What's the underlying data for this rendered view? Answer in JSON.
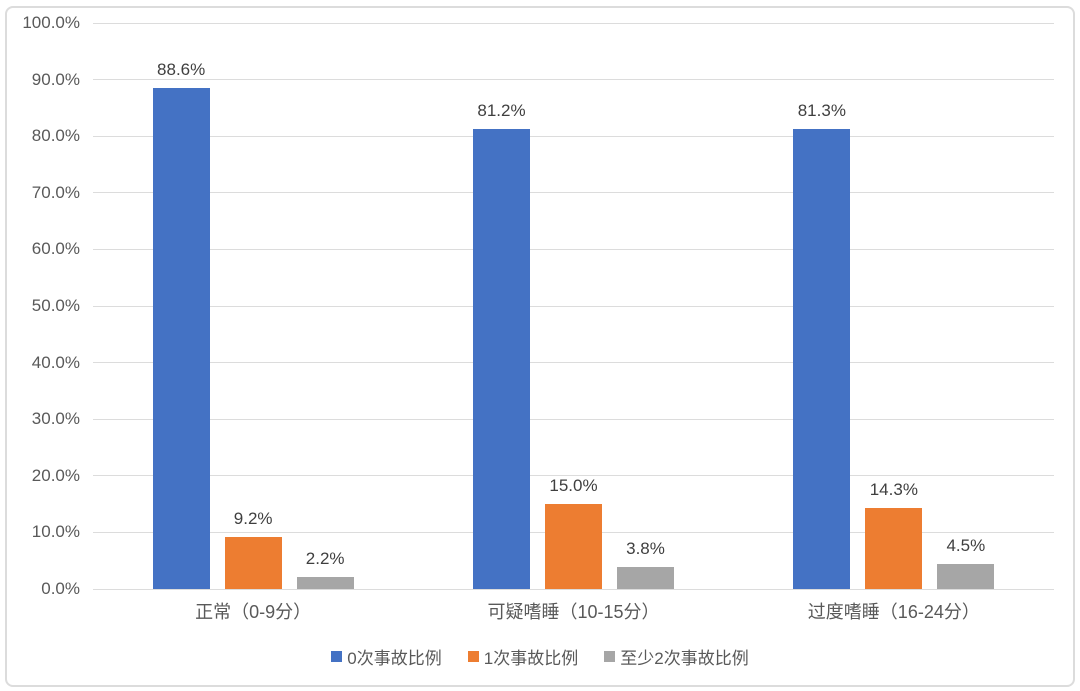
{
  "chart_data": {
    "type": "bar",
    "title": "",
    "xlabel": "",
    "ylabel": "",
    "categories": [
      "正常（0-9分）",
      "可疑嗜睡（10-15分）",
      "过度嗜睡（16-24分）"
    ],
    "series": [
      {
        "name": "0次事故比例",
        "color": "#4472C4",
        "values": [
          88.6,
          81.2,
          81.3
        ],
        "labels": [
          "88.6%",
          "81.2%",
          "81.3%"
        ]
      },
      {
        "name": "1次事故比例",
        "color": "#ED7D31",
        "values": [
          9.2,
          15.0,
          14.3
        ],
        "labels": [
          "9.2%",
          "15.0%",
          "14.3%"
        ]
      },
      {
        "name": "至少2次事故比例",
        "color": "#A6A6A6",
        "values": [
          2.2,
          3.8,
          4.5
        ],
        "labels": [
          "2.2%",
          "3.8%",
          "4.5%"
        ]
      }
    ],
    "ylim": [
      0,
      100
    ],
    "ytick_labels": [
      "0.0%",
      "10.0%",
      "20.0%",
      "30.0%",
      "40.0%",
      "50.0%",
      "60.0%",
      "70.0%",
      "80.0%",
      "90.0%",
      "100.0%"
    ],
    "grid": true,
    "legend_position": "bottom",
    "colors": {
      "axis_text": "#595959",
      "value_label_text": "#3F3F3F",
      "gridline": "#DCDCDC",
      "frame_border": "#DCDCDC",
      "background": "#FFFFFF"
    }
  }
}
